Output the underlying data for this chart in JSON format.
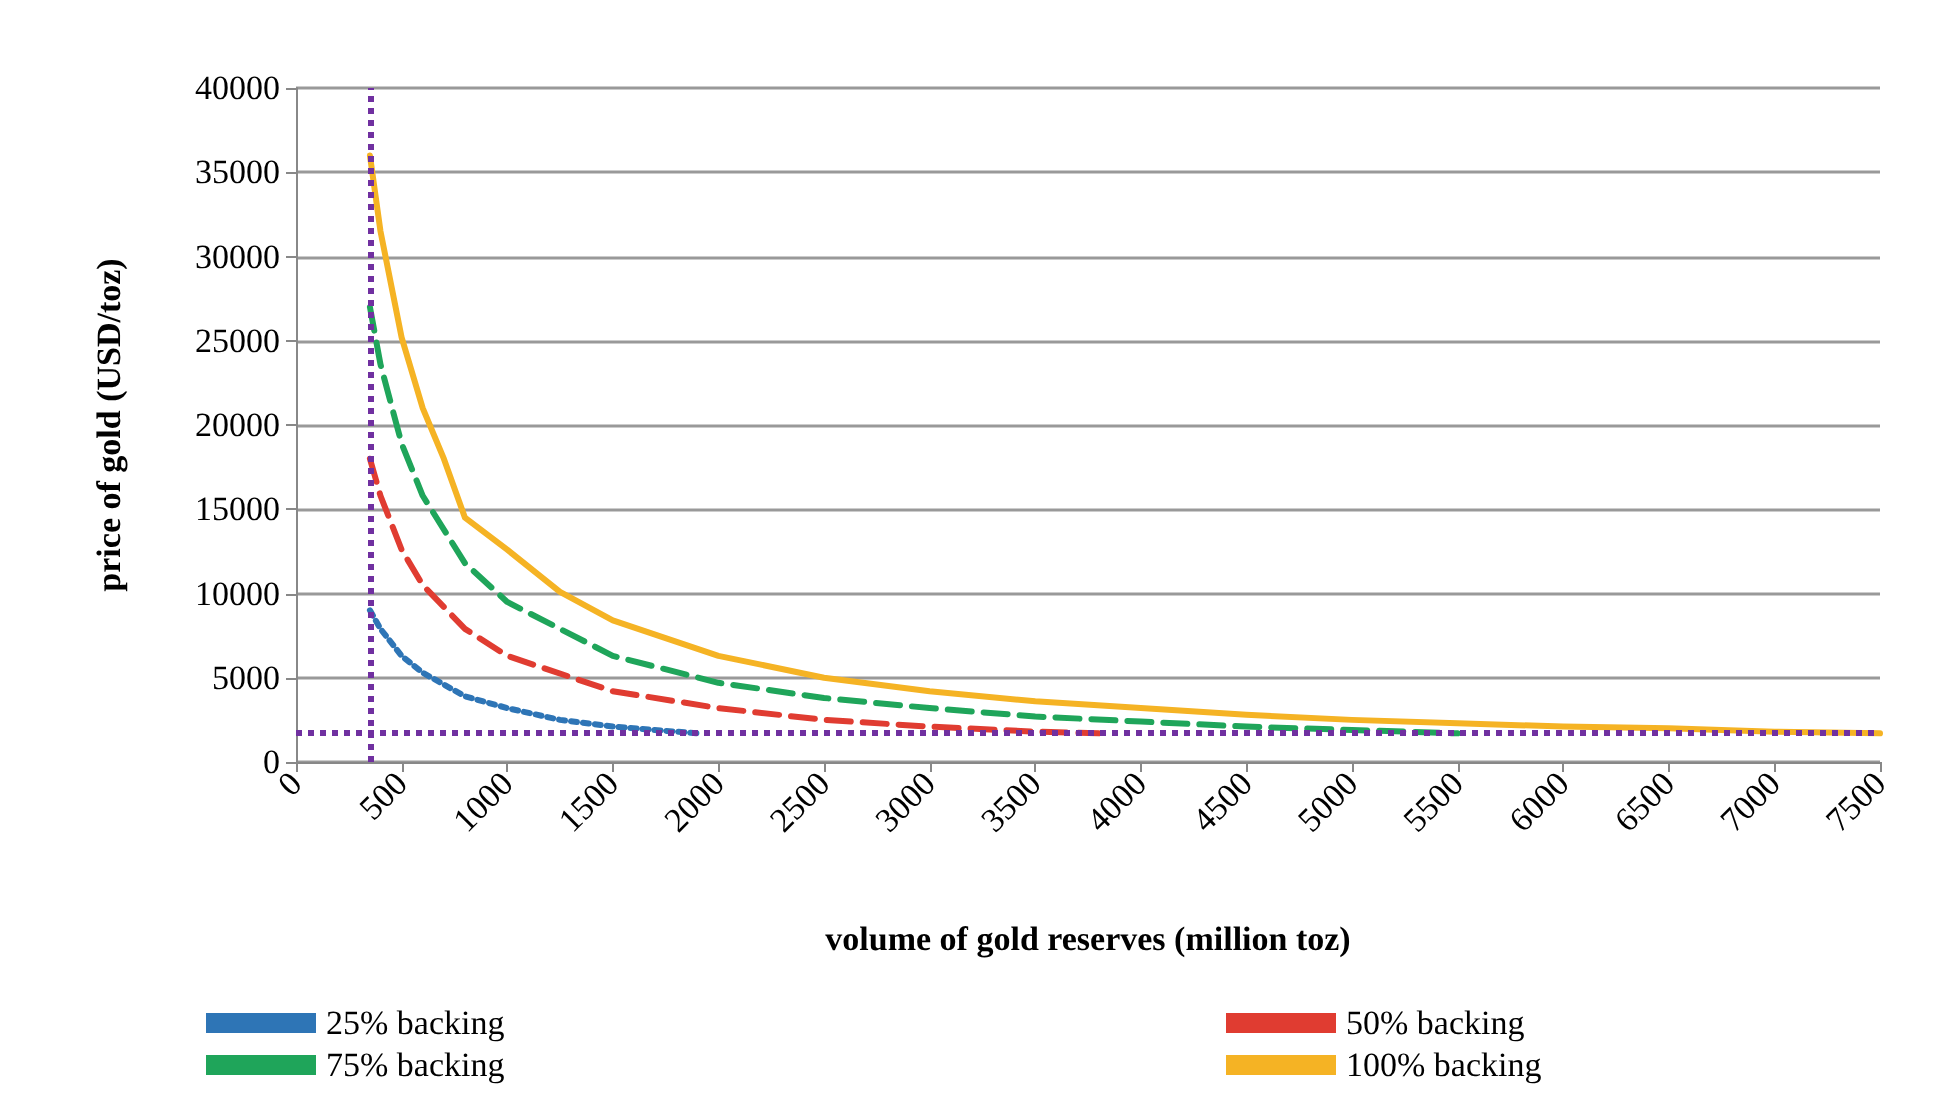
{
  "chart_data": {
    "type": "line",
    "xlabel": "volume of gold reserves (million toz)",
    "ylabel": "price of gold (USD/toz)",
    "xlim": [
      0,
      7500
    ],
    "xticks": [
      0,
      500,
      1000,
      1500,
      2000,
      2500,
      3000,
      3500,
      4000,
      4500,
      5000,
      5500,
      6000,
      6500,
      7000,
      7500
    ],
    "ylim": [
      0,
      40000
    ],
    "yticks": [
      0,
      5000,
      10000,
      15000,
      20000,
      25000,
      30000,
      35000,
      40000
    ],
    "grid": "y",
    "legend": "bottom",
    "marker": "none",
    "series": [
      {
        "name": "25% backing",
        "color": "#2e75b6",
        "line_style": "dotted",
        "x": [
          350,
          400,
          500,
          600,
          800,
          1000,
          1250,
          1500,
          1900
        ],
        "values": [
          9000,
          7900,
          6300,
          5300,
          3900,
          3200,
          2500,
          2100,
          1700
        ]
      },
      {
        "name": "50% backing",
        "color": "#e03c31",
        "line_style": "dashed",
        "x": [
          350,
          400,
          500,
          600,
          800,
          1000,
          1500,
          2000,
          2500,
          3000,
          3500,
          3800
        ],
        "values": [
          18000,
          15800,
          12600,
          10500,
          7900,
          6300,
          4200,
          3200,
          2500,
          2100,
          1800,
          1700
        ]
      },
      {
        "name": "75% backing",
        "color": "#1fa55a",
        "line_style": "dashed",
        "x": [
          350,
          400,
          500,
          600,
          800,
          1000,
          1500,
          2000,
          2500,
          3000,
          3500,
          4000,
          4500,
          5000,
          5500
        ],
        "values": [
          27000,
          23600,
          18900,
          15800,
          11800,
          9500,
          6300,
          4700,
          3800,
          3200,
          2700,
          2400,
          2100,
          1900,
          1700
        ]
      },
      {
        "name": "100% backing",
        "color": "#f5b324",
        "line_style": "solid",
        "x": [
          350,
          400,
          500,
          600,
          700,
          800,
          1000,
          1250,
          1500,
          2000,
          2500,
          3000,
          3500,
          4000,
          4500,
          5000,
          5500,
          6000,
          6500,
          7000,
          7500
        ],
        "values": [
          36000,
          31500,
          25200,
          21000,
          18000,
          14500,
          12600,
          10100,
          8400,
          6300,
          5000,
          4200,
          3600,
          3200,
          2800,
          2500,
          2300,
          2100,
          2000,
          1800,
          1700
        ]
      }
    ],
    "ref_lines": [
      {
        "axis": "x",
        "value": 350,
        "color": "#7030a0",
        "line_style": "dotted"
      },
      {
        "axis": "y",
        "value": 1700,
        "color": "#7030a0",
        "line_style": "dotted"
      }
    ]
  }
}
